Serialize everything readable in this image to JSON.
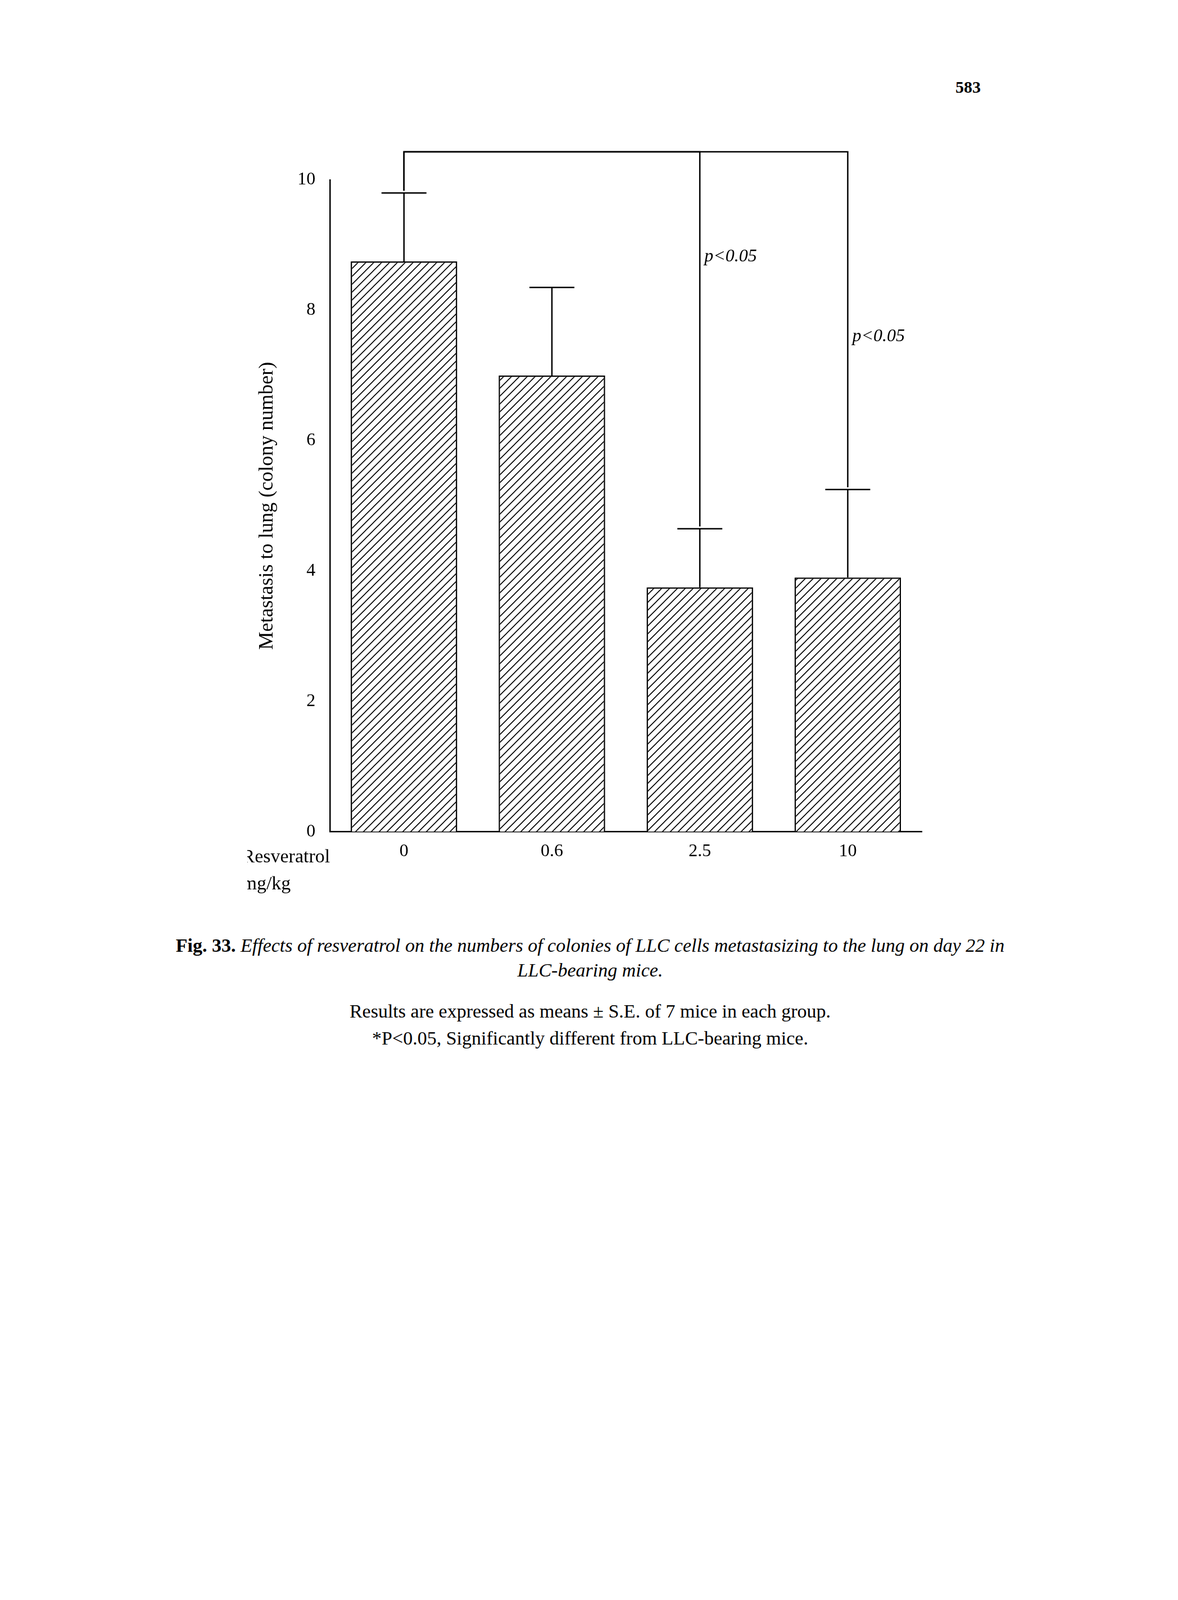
{
  "page_number": "583",
  "chart_data": {
    "type": "bar",
    "categories": [
      "0",
      "0.6",
      "2.5",
      "10"
    ],
    "values": [
      8.75,
      7.0,
      3.75,
      3.9
    ],
    "errors": [
      1.05,
      1.35,
      0.9,
      1.35
    ],
    "color": "#000000",
    "ylim": [
      0,
      10
    ],
    "yticks": [
      0,
      2,
      4,
      6,
      8,
      10
    ],
    "y_label": "Metastasis to lung (colony number)",
    "x_label": "Resveratrol mg/kg",
    "grid": false,
    "annotations": [
      {
        "text": "p<0.05",
        "from": "0",
        "to": "2.5"
      },
      {
        "text": "p<0.05",
        "from": "0",
        "to": "10"
      }
    ]
  },
  "caption": {
    "label": "Fig. 33.",
    "text": "Effects of resveratrol on the numbers of colonies of LLC cells metastasizing to the lung on day 22 in LLC-bearing mice."
  },
  "notes": [
    "Results are expressed as means ± S.E. of 7 mice in each group.",
    "*P<0.05, Significantly different from LLC-bearing mice."
  ]
}
